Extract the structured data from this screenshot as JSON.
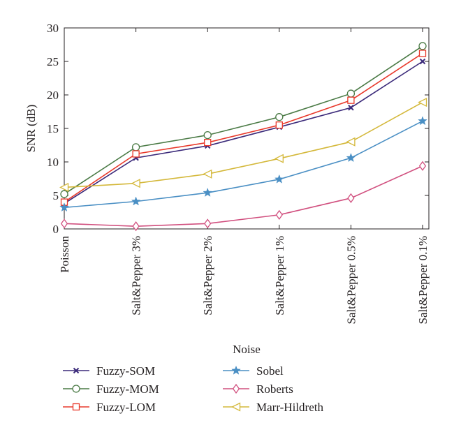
{
  "chart_data": {
    "type": "line",
    "xlabel": "Noise",
    "ylabel": "SNR (dB)",
    "categories": [
      "Poisson",
      "Salt&Pepper 3%",
      "Salt&Pepper 2%",
      "Salt&Pepper 1%",
      "Salt&Pepper 0.5%",
      "Salt&Pepper 0.1%"
    ],
    "ylim": [
      0,
      30
    ],
    "yticks": [
      0,
      5,
      10,
      15,
      20,
      25,
      30
    ],
    "grid": false,
    "legend_position": "bottom",
    "series": [
      {
        "name": "Fuzzy-SOM",
        "color": "#3b2a7a",
        "marker": "x",
        "values": [
          3.8,
          10.6,
          12.4,
          15.2,
          18.1,
          25.0
        ]
      },
      {
        "name": "Fuzzy-MOM",
        "color": "#4a7a45",
        "marker": "circle",
        "values": [
          5.2,
          12.2,
          14.0,
          16.7,
          20.2,
          27.3
        ]
      },
      {
        "name": "Fuzzy-LOM",
        "color": "#e8392b",
        "marker": "square",
        "values": [
          4.0,
          11.2,
          12.9,
          15.5,
          19.2,
          26.2
        ]
      },
      {
        "name": "Sobel",
        "color": "#4a8fc4",
        "marker": "star",
        "values": [
          3.2,
          4.1,
          5.4,
          7.4,
          10.6,
          16.1
        ]
      },
      {
        "name": "Roberts",
        "color": "#d1507f",
        "marker": "diamond",
        "values": [
          0.8,
          0.4,
          0.8,
          2.1,
          4.6,
          9.4
        ]
      },
      {
        "name": "Marr-Hildreth",
        "color": "#d4b83a",
        "marker": "triangle-left",
        "values": [
          6.2,
          6.8,
          8.2,
          10.5,
          13.0,
          18.9
        ]
      }
    ]
  }
}
